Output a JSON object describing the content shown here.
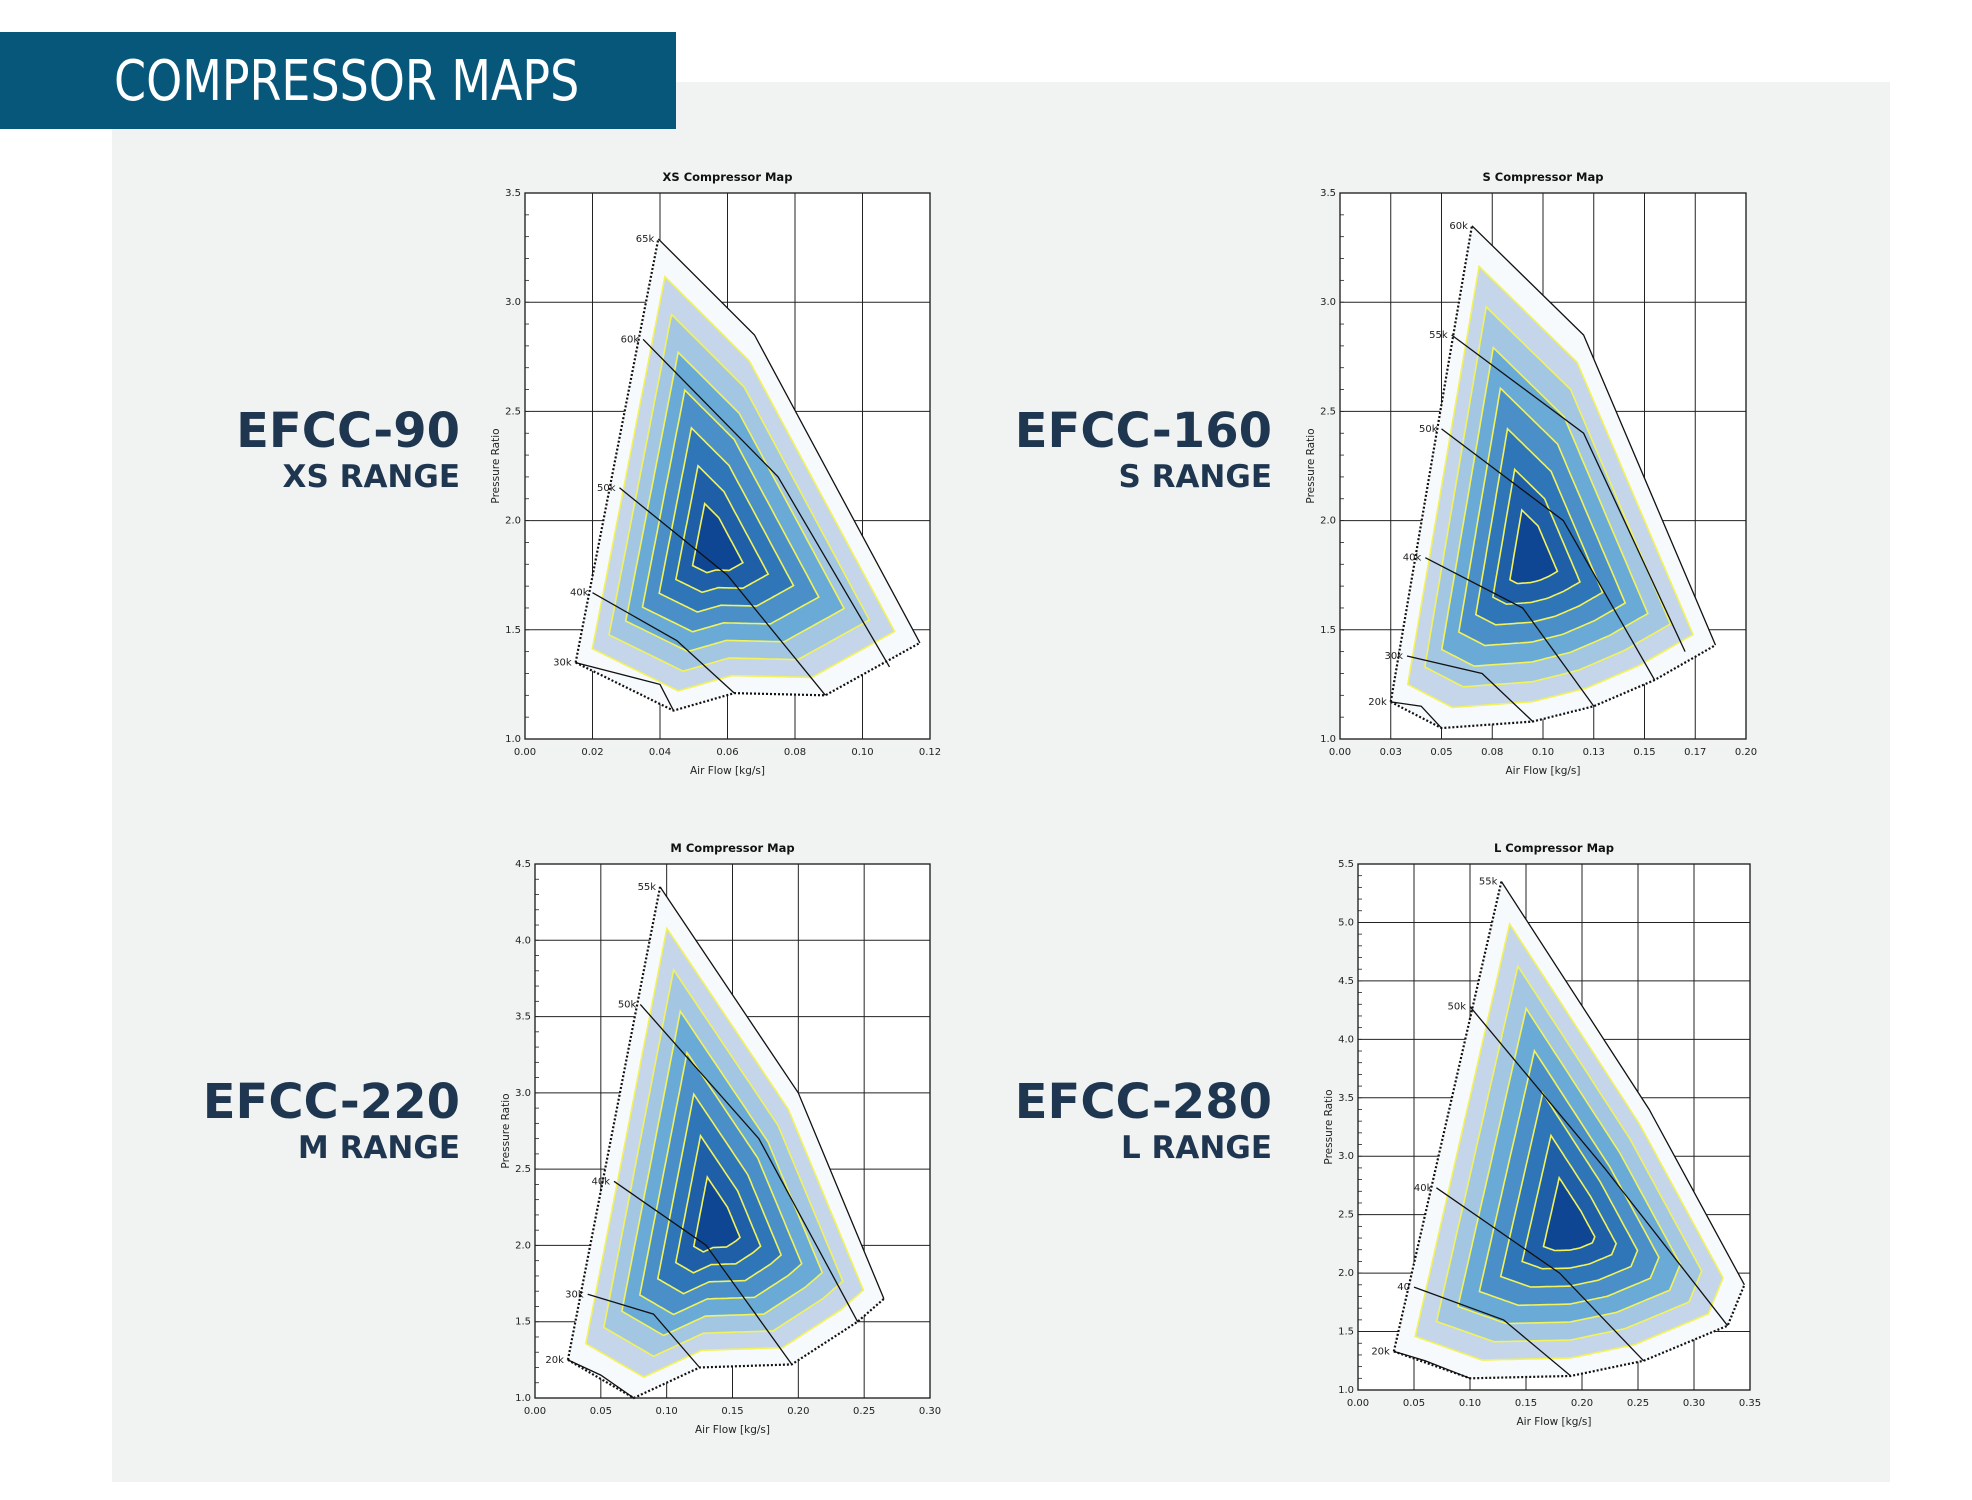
{
  "header": {
    "title": "COMPRESSOR MAPS"
  },
  "colors": {
    "banner": "#07577b",
    "panel_bg": "#f0f3f2",
    "contour_line": "#f2f25a",
    "model_text": "#1f3650",
    "zone_colors": [
      "#f7fafc",
      "#c6d6ea",
      "#a3c7e2",
      "#6aaad6",
      "#4a8fc7",
      "#2e76b8",
      "#1f5fa8",
      "#0f4694"
    ]
  },
  "models": [
    {
      "name": "EFCC-90",
      "range": "XS RANGE"
    },
    {
      "name": "EFCC-160",
      "range": "S RANGE"
    },
    {
      "name": "EFCC-220",
      "range": "M RANGE"
    },
    {
      "name": "EFCC-280",
      "range": "L RANGE"
    }
  ],
  "chart_data": [
    {
      "type": "contour",
      "title": "XS Compressor Map",
      "xlabel": "Air Flow [kg/s]",
      "ylabel": "Pressure Ratio",
      "xlim": [
        0,
        0.12
      ],
      "ylim": [
        1.0,
        3.5
      ],
      "xticks": [
        "0.00",
        "0.02",
        "0.04",
        "0.06",
        "0.08",
        "0.10",
        "0.12"
      ],
      "yticks": [
        "1.0",
        "1.5",
        "2.0",
        "2.5",
        "3.0",
        "3.5"
      ],
      "grid": true,
      "surge_line": [
        [
          0.015,
          1.35
        ],
        [
          0.0395,
          3.29
        ]
      ],
      "choke_line": [
        [
          0.015,
          1.35
        ],
        [
          0.044,
          1.13
        ],
        [
          0.062,
          1.21
        ],
        [
          0.089,
          1.2
        ],
        [
          0.117,
          1.44
        ]
      ],
      "speed_labels": [
        "30k",
        "40k",
        "50k",
        "60k",
        "65k"
      ],
      "speed_lines": [
        {
          "label": "30k",
          "points": [
            [
              0.015,
              1.35
            ],
            [
              0.04,
              1.25
            ],
            [
              0.044,
              1.13
            ]
          ]
        },
        {
          "label": "40k",
          "points": [
            [
              0.02,
              1.67
            ],
            [
              0.045,
              1.45
            ],
            [
              0.062,
              1.21
            ]
          ]
        },
        {
          "label": "50k",
          "points": [
            [
              0.028,
              2.15
            ],
            [
              0.06,
              1.75
            ],
            [
              0.089,
              1.2
            ]
          ]
        },
        {
          "label": "60k",
          "points": [
            [
              0.035,
              2.83
            ],
            [
              0.075,
              2.2
            ],
            [
              0.108,
              1.33
            ]
          ]
        },
        {
          "label": "65k",
          "points": [
            [
              0.0395,
              3.29
            ],
            [
              0.068,
              2.85
            ],
            [
              0.117,
              1.44
            ]
          ]
        }
      ],
      "efficiency_levels": 7
    },
    {
      "type": "contour",
      "title": "S Compressor Map",
      "xlabel": "Air Flow [kg/s]",
      "ylabel": "Pressure Ratio",
      "xlim": [
        0,
        0.2
      ],
      "ylim": [
        1.0,
        3.5
      ],
      "xticks": [
        "0.00",
        "0.03",
        "0.05",
        "0.08",
        "0.10",
        "0.13",
        "0.15",
        "0.17",
        "0.20"
      ],
      "yticks": [
        "1.0",
        "1.5",
        "2.0",
        "2.5",
        "3.0",
        "3.5"
      ],
      "grid": true,
      "surge_line": [
        [
          0.025,
          1.17
        ],
        [
          0.065,
          3.35
        ]
      ],
      "choke_line": [
        [
          0.025,
          1.17
        ],
        [
          0.05,
          1.05
        ],
        [
          0.095,
          1.08
        ],
        [
          0.125,
          1.15
        ],
        [
          0.155,
          1.27
        ],
        [
          0.185,
          1.43
        ]
      ],
      "speed_labels": [
        "20k",
        "30k",
        "40k",
        "50k",
        "55k",
        "60k"
      ],
      "speed_lines": [
        {
          "label": "20k",
          "points": [
            [
              0.025,
              1.17
            ],
            [
              0.04,
              1.15
            ],
            [
              0.05,
              1.05
            ]
          ]
        },
        {
          "label": "30k",
          "points": [
            [
              0.033,
              1.38
            ],
            [
              0.07,
              1.3
            ],
            [
              0.095,
              1.08
            ]
          ]
        },
        {
          "label": "40k",
          "points": [
            [
              0.042,
              1.83
            ],
            [
              0.09,
              1.6
            ],
            [
              0.125,
              1.15
            ]
          ]
        },
        {
          "label": "50k",
          "points": [
            [
              0.05,
              2.42
            ],
            [
              0.11,
              2.0
            ],
            [
              0.155,
              1.27
            ]
          ]
        },
        {
          "label": "55k",
          "points": [
            [
              0.055,
              2.85
            ],
            [
              0.12,
              2.4
            ],
            [
              0.17,
              1.4
            ]
          ]
        },
        {
          "label": "60k",
          "points": [
            [
              0.065,
              3.35
            ],
            [
              0.12,
              2.85
            ],
            [
              0.185,
              1.43
            ]
          ]
        }
      ],
      "efficiency_levels": 7
    },
    {
      "type": "contour",
      "title": "M Compressor Map",
      "xlabel": "Air Flow [kg/s]",
      "ylabel": "Pressure Ratio",
      "xlim": [
        0,
        0.3
      ],
      "ylim": [
        1.0,
        4.5
      ],
      "xticks": [
        "0.00",
        "0.05",
        "0.10",
        "0.15",
        "0.20",
        "0.25",
        "0.30"
      ],
      "yticks": [
        "1.0",
        "1.5",
        "2.0",
        "2.5",
        "3.0",
        "3.5",
        "4.0",
        "4.5"
      ],
      "grid": true,
      "surge_line": [
        [
          0.025,
          1.25
        ],
        [
          0.095,
          4.35
        ]
      ],
      "choke_line": [
        [
          0.025,
          1.25
        ],
        [
          0.075,
          1.0
        ],
        [
          0.125,
          1.2
        ],
        [
          0.195,
          1.22
        ],
        [
          0.245,
          1.5
        ],
        [
          0.265,
          1.65
        ]
      ],
      "speed_labels": [
        "20k",
        "30k",
        "40k",
        "50k",
        "55k"
      ],
      "speed_lines": [
        {
          "label": "20k",
          "points": [
            [
              0.025,
              1.25
            ],
            [
              0.05,
              1.15
            ],
            [
              0.075,
              1.0
            ]
          ]
        },
        {
          "label": "30k",
          "points": [
            [
              0.04,
              1.68
            ],
            [
              0.09,
              1.55
            ],
            [
              0.125,
              1.2
            ]
          ]
        },
        {
          "label": "40k",
          "points": [
            [
              0.06,
              2.42
            ],
            [
              0.13,
              2.0
            ],
            [
              0.195,
              1.22
            ]
          ]
        },
        {
          "label": "50k",
          "points": [
            [
              0.08,
              3.58
            ],
            [
              0.17,
              2.7
            ],
            [
              0.245,
              1.5
            ]
          ]
        },
        {
          "label": "55k",
          "points": [
            [
              0.095,
              4.35
            ],
            [
              0.2,
              3.0
            ],
            [
              0.265,
              1.65
            ]
          ]
        }
      ],
      "efficiency_levels": 7
    },
    {
      "type": "contour",
      "title": "L Compressor Map",
      "xlabel": "Air Flow [kg/s]",
      "ylabel": "Pressure Ratio",
      "xlim": [
        0,
        0.35
      ],
      "ylim": [
        1.0,
        5.5
      ],
      "xticks": [
        "0.00",
        "0.05",
        "0.10",
        "0.15",
        "0.20",
        "0.25",
        "0.30",
        "0.35"
      ],
      "yticks": [
        "1.0",
        "1.5",
        "2.0",
        "2.5",
        "3.0",
        "3.5",
        "4.0",
        "4.5",
        "5.0",
        "5.5"
      ],
      "grid": true,
      "surge_line": [
        [
          0.032,
          1.33
        ],
        [
          0.128,
          5.35
        ]
      ],
      "choke_line": [
        [
          0.032,
          1.33
        ],
        [
          0.1,
          1.1
        ],
        [
          0.19,
          1.12
        ],
        [
          0.255,
          1.25
        ],
        [
          0.33,
          1.55
        ],
        [
          0.345,
          1.9
        ]
      ],
      "speed_labels": [
        "20k",
        "40",
        "40k",
        "50k",
        "55k"
      ],
      "speed_lines": [
        {
          "label": "20k",
          "points": [
            [
              0.032,
              1.33
            ],
            [
              0.06,
              1.25
            ],
            [
              0.1,
              1.1
            ]
          ]
        },
        {
          "label": "40",
          "points": [
            [
              0.05,
              1.88
            ],
            [
              0.13,
              1.6
            ],
            [
              0.19,
              1.12
            ]
          ]
        },
        {
          "label": "40k",
          "points": [
            [
              0.07,
              2.73
            ],
            [
              0.18,
              2.0
            ],
            [
              0.255,
              1.25
            ]
          ]
        },
        {
          "label": "50k",
          "points": [
            [
              0.1,
              4.28
            ],
            [
              0.22,
              2.9
            ],
            [
              0.33,
              1.55
            ]
          ]
        },
        {
          "label": "55k",
          "points": [
            [
              0.128,
              5.35
            ],
            [
              0.26,
              3.4
            ],
            [
              0.345,
              1.9
            ]
          ]
        }
      ],
      "efficiency_levels": 7
    }
  ]
}
